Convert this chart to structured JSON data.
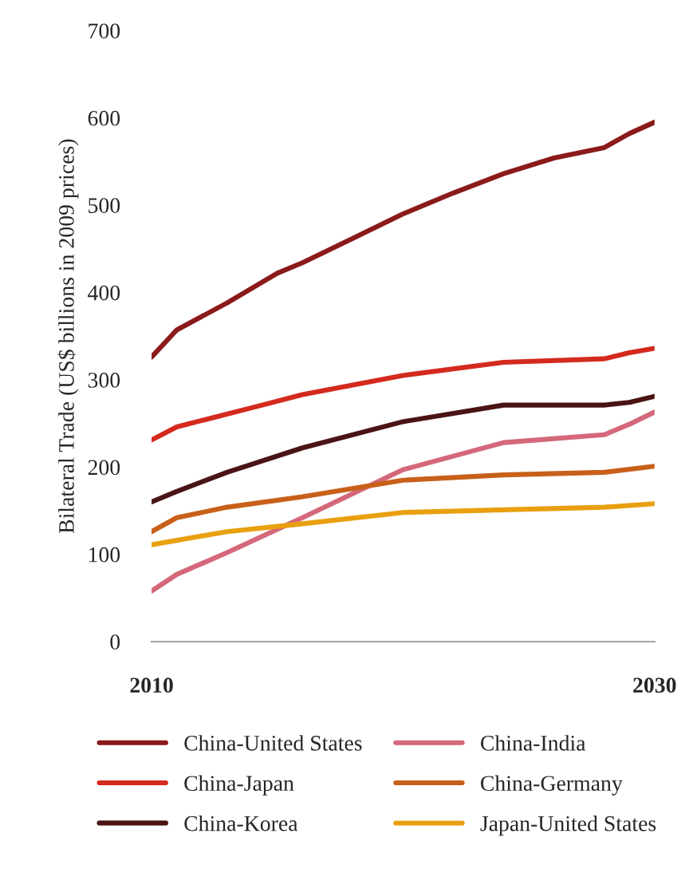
{
  "chart_data": {
    "type": "line",
    "ylabel": "Bilateral Trade (US$ billions in 2009 prices)",
    "xlim": [
      2010,
      2030
    ],
    "xticks": [
      2010,
      2030
    ],
    "ylim": [
      0,
      700
    ],
    "yticks": [
      0,
      100,
      200,
      300,
      400,
      500,
      600,
      700
    ],
    "grid": false,
    "legend": "bottom",
    "marker": "none",
    "line_style": "solid",
    "series": [
      {
        "name": "China-United States",
        "color": "#8b1a1a",
        "x": [
          2010,
          2011,
          2013,
          2015,
          2016,
          2018,
          2020,
          2022,
          2024,
          2026,
          2028,
          2029,
          2030
        ],
        "values": [
          326,
          357,
          388,
          422,
          434,
          462,
          490,
          514,
          536,
          554,
          566,
          582,
          595
        ]
      },
      {
        "name": "China-Japan",
        "color": "#d42a1e",
        "x": [
          2010,
          2011,
          2014,
          2016,
          2020,
          2024,
          2028,
          2029,
          2030
        ],
        "values": [
          231,
          246,
          268,
          283,
          305,
          320,
          324,
          331,
          336
        ]
      },
      {
        "name": "China-Korea",
        "color": "#4a1414",
        "x": [
          2010,
          2011,
          2013,
          2016,
          2020,
          2024,
          2028,
          2029,
          2030
        ],
        "values": [
          160,
          172,
          194,
          222,
          252,
          271,
          271,
          274,
          281
        ]
      },
      {
        "name": "China-India",
        "color": "#d4687a",
        "x": [
          2010,
          2011,
          2013,
          2016,
          2020,
          2024,
          2028,
          2029,
          2030
        ],
        "values": [
          58,
          77,
          102,
          142,
          197,
          228,
          237,
          249,
          263
        ]
      },
      {
        "name": "China-Germany",
        "color": "#c8601a",
        "x": [
          2010,
          2011,
          2013,
          2016,
          2020,
          2024,
          2028,
          2030
        ],
        "values": [
          126,
          142,
          154,
          166,
          185,
          191,
          194,
          201
        ]
      },
      {
        "name": "Japan-United States",
        "color": "#e8a010",
        "x": [
          2010,
          2013,
          2016,
          2020,
          2024,
          2028,
          2030
        ],
        "values": [
          111,
          126,
          135,
          148,
          151,
          154,
          158
        ]
      }
    ]
  }
}
